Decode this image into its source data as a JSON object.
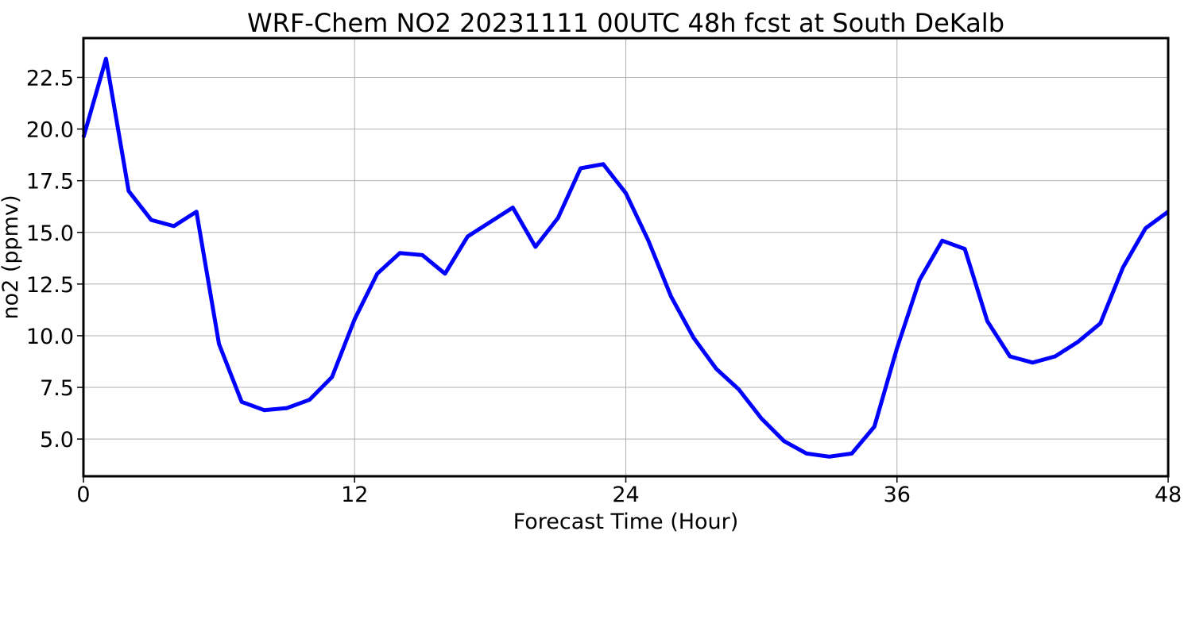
{
  "chart_data": {
    "type": "line",
    "title": "WRF-Chem NO2  20231111 00UTC 48h fcst at South DeKalb",
    "xlabel": "Forecast Time (Hour)",
    "ylabel": "no2  (ppmv)",
    "xlim": [
      0,
      48
    ],
    "ylim": [
      3.2,
      24.4
    ],
    "xticks": [
      0,
      12,
      24,
      36,
      48
    ],
    "yticks": [
      5.0,
      7.5,
      10.0,
      12.5,
      15.0,
      17.5,
      20.0,
      22.5
    ],
    "ytick_labels": [
      "5.0",
      "7.5",
      "10.0",
      "12.5",
      "15.0",
      "17.5",
      "20.0",
      "22.5"
    ],
    "xtick_labels": [
      "0",
      "12",
      "24",
      "36",
      "48"
    ],
    "grid": true,
    "line_color": "#0000ff",
    "series": [
      {
        "x": [
          0,
          1,
          2,
          3,
          4,
          5,
          6,
          7,
          8,
          9,
          10,
          11,
          12,
          13,
          14,
          15,
          16,
          17,
          18,
          19,
          20,
          21,
          22,
          23,
          24,
          25,
          26,
          27,
          28,
          29,
          30,
          31,
          32,
          33,
          34,
          35,
          36,
          37,
          38,
          39,
          40,
          41,
          42,
          43,
          44,
          45,
          46,
          47,
          48
        ],
        "values": [
          19.6,
          23.4,
          17.0,
          15.6,
          15.3,
          16.0,
          9.6,
          6.8,
          6.4,
          6.5,
          6.9,
          8.0,
          10.8,
          13.0,
          14.0,
          13.9,
          13.0,
          14.8,
          15.5,
          16.2,
          14.3,
          15.7,
          18.1,
          18.3,
          16.9,
          14.6,
          11.9,
          9.9,
          8.4,
          7.4,
          6.0,
          4.9,
          4.3,
          4.15,
          4.3,
          5.6,
          9.4,
          12.7,
          14.6,
          14.2,
          10.7,
          9.0,
          8.7,
          9.0,
          9.7,
          10.6,
          13.3,
          15.2,
          16.0
        ]
      }
    ]
  }
}
